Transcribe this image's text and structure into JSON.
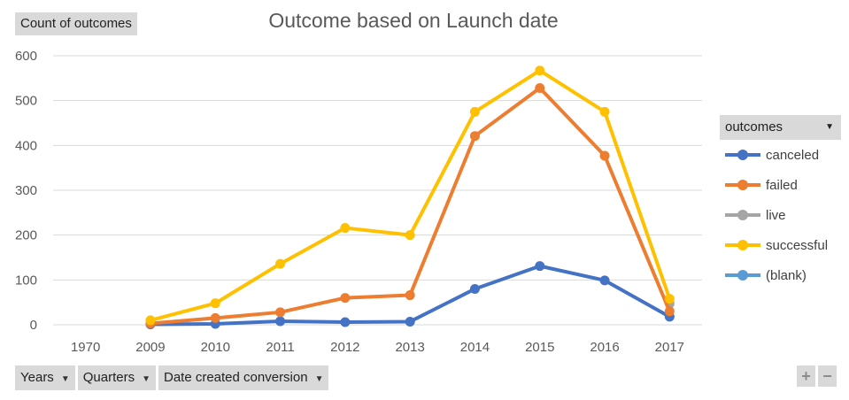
{
  "value_field": {
    "label": "Count of outcomes",
    "dropdown_icon": "none"
  },
  "legend_field": {
    "label": "outcomes",
    "dropdown_icon": "triangle-down-icon"
  },
  "axis_fields": [
    {
      "label": "Years",
      "dropdown_icon": "triangle-down-icon"
    },
    {
      "label": "Quarters",
      "dropdown_icon": "triangle-down-icon"
    },
    {
      "label": "Date created conversion",
      "dropdown_icon": "triangle-down-icon"
    }
  ],
  "zoom_controls": {
    "expand": "+",
    "collapse": "−"
  },
  "chart_data": {
    "type": "line",
    "title": "Outcome based on Launch date",
    "xlabel": "",
    "ylabel": "",
    "categories": [
      "1970",
      "2009",
      "2010",
      "2011",
      "2012",
      "2013",
      "2014",
      "2015",
      "2016",
      "2017"
    ],
    "ylim": [
      0,
      600
    ],
    "yticks": [
      0,
      100,
      200,
      300,
      400,
      500,
      600
    ],
    "grid": true,
    "legend_position": "right",
    "series": [
      {
        "name": "canceled",
        "color": "#4472c4",
        "values": [
          null,
          1,
          2,
          8,
          6,
          7,
          80,
          131,
          99,
          18
        ]
      },
      {
        "name": "failed",
        "color": "#ed7d31",
        "values": [
          null,
          3,
          15,
          28,
          60,
          66,
          421,
          528,
          377,
          30
        ]
      },
      {
        "name": "live",
        "color": "#a5a5a5",
        "values": [
          null,
          null,
          null,
          null,
          null,
          null,
          null,
          null,
          null,
          47
        ]
      },
      {
        "name": "successful",
        "color": "#ffc000",
        "values": [
          null,
          10,
          48,
          136,
          216,
          200,
          475,
          567,
          475,
          58
        ]
      },
      {
        "name": "(blank)",
        "color": "#5b9bd5",
        "values": [
          null,
          null,
          null,
          null,
          null,
          null,
          null,
          null,
          null,
          null
        ]
      }
    ]
  }
}
